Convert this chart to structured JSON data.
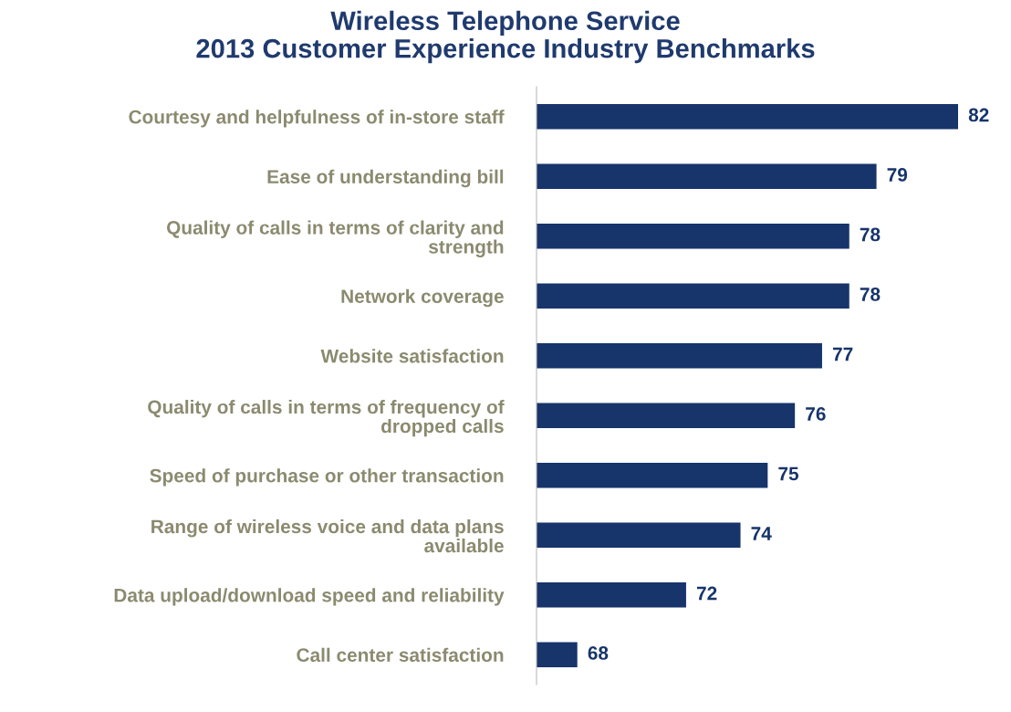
{
  "chart_data": {
    "type": "bar",
    "orientation": "horizontal",
    "title": "Wireless Telephone Service\n2013 Customer Experience Industry Benchmarks",
    "categories": [
      "Courtesy and helpfulness of in-store staff",
      "Ease of understanding bill",
      "Quality of calls in terms of clarity and\nstrength",
      "Network coverage",
      "Website satisfaction",
      "Quality of calls in terms of frequency of\ndropped calls",
      "Speed of purchase or other transaction",
      "Range of wireless voice and data plans\navailable",
      "Data upload/download speed and reliability",
      "Call center satisfaction"
    ],
    "values": [
      82,
      79,
      78,
      78,
      77,
      76,
      75,
      74,
      72,
      68
    ],
    "color": "#17346b",
    "xlim": [
      66.5,
      82
    ],
    "tick_labels": "y",
    "data_labels": true,
    "grid": false,
    "legend": false
  }
}
